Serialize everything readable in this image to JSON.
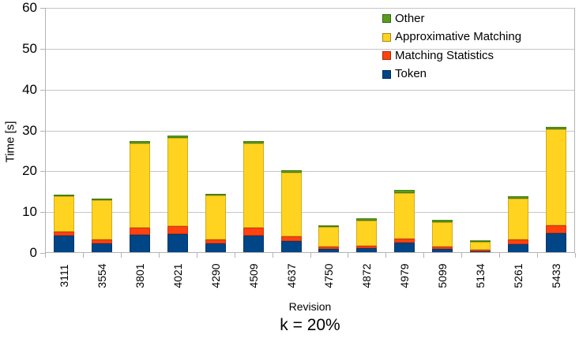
{
  "chart_data": {
    "type": "bar",
    "stacked": true,
    "title": "",
    "xlabel": "Revision",
    "ylabel": "Time [s]",
    "caption": "k = 20%",
    "ylim": [
      0,
      60
    ],
    "yticks": [
      0,
      10,
      20,
      30,
      40,
      50,
      60
    ],
    "grid": "horizontal",
    "legend_position": "top-right-inside",
    "legend_order": [
      "Other",
      "Approximative Matching",
      "Matching Statistics",
      "Token"
    ],
    "categories": [
      "3111",
      "3554",
      "3801",
      "4021",
      "4290",
      "4509",
      "4637",
      "4750",
      "4872",
      "4979",
      "5099",
      "5134",
      "5261",
      "5433"
    ],
    "series": [
      {
        "name": "Token",
        "color": "#004586",
        "values": [
          4.3,
          2.4,
          4.5,
          4.7,
          2.4,
          4.2,
          2.9,
          1.0,
          1.2,
          2.5,
          1.0,
          0.3,
          2.2,
          4.8
        ]
      },
      {
        "name": "Matching Statistics",
        "color": "#ff420e",
        "values": [
          0.9,
          0.8,
          1.7,
          1.8,
          0.9,
          1.9,
          1.2,
          0.5,
          0.6,
          0.9,
          0.5,
          0.4,
          1.0,
          1.9
        ]
      },
      {
        "name": "Approximative Matching",
        "color": "#ffd320",
        "values": [
          8.6,
          9.7,
          20.7,
          21.6,
          10.7,
          20.8,
          15.6,
          4.8,
          6.2,
          11.3,
          6.0,
          2.0,
          10.1,
          23.6
        ]
      },
      {
        "name": "Other",
        "color": "#579d1c",
        "values": [
          0.5,
          0.5,
          0.5,
          0.6,
          0.5,
          0.5,
          0.5,
          0.5,
          0.5,
          0.8,
          0.6,
          0.3,
          0.5,
          0.5
        ]
      }
    ],
    "totals": [
      14.3,
      13.4,
      27.4,
      28.7,
      14.5,
      27.4,
      20.2,
      6.8,
      8.5,
      15.5,
      8.1,
      3.0,
      13.8,
      30.8
    ]
  },
  "colors": {
    "background": "#ffffff",
    "gridline": "#c6c6c6",
    "axis": "#b3b3b3",
    "text": "#000000"
  }
}
